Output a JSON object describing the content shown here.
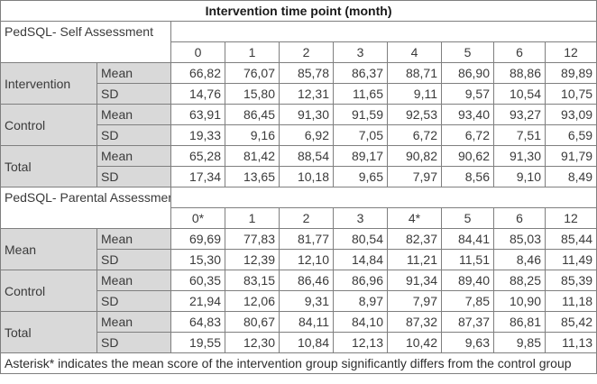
{
  "title": "Intervention time point (month)",
  "self": {
    "label": "PedSQL- Self Assessment",
    "timepoints": [
      "0",
      "1",
      "2",
      "3",
      "4",
      "5",
      "6",
      "12"
    ],
    "groups": [
      {
        "name": "Intervention",
        "rows": [
          {
            "stat": "Mean",
            "values": [
              "66,82",
              "76,07",
              "85,78",
              "86,37",
              "88,71",
              "86,90",
              "88,86",
              "89,89"
            ]
          },
          {
            "stat": "SD",
            "values": [
              "14,76",
              "15,80",
              "12,31",
              "11,65",
              "9,11",
              "9,57",
              "10,54",
              "10,75"
            ]
          }
        ]
      },
      {
        "name": "Control",
        "rows": [
          {
            "stat": "Mean",
            "values": [
              "63,91",
              "86,45",
              "91,30",
              "91,59",
              "92,53",
              "93,40",
              "93,27",
              "93,09"
            ]
          },
          {
            "stat": "SD",
            "values": [
              "19,33",
              "9,16",
              "6,92",
              "7,05",
              "6,72",
              "6,72",
              "7,51",
              "6,59"
            ]
          }
        ]
      },
      {
        "name": "Total",
        "rows": [
          {
            "stat": "Mean",
            "values": [
              "65,28",
              "81,42",
              "88,54",
              "89,17",
              "90,82",
              "90,62",
              "91,30",
              "91,79"
            ]
          },
          {
            "stat": "SD",
            "values": [
              "17,34",
              "13,65",
              "10,18",
              "9,65",
              "7,97",
              "8,56",
              "9,10",
              "8,49"
            ]
          }
        ]
      }
    ]
  },
  "parental": {
    "label": "PedSQL- Parental Assessment",
    "timepoints": [
      "0*",
      "1",
      "2",
      "3",
      "4*",
      "5",
      "6",
      "12"
    ],
    "groups": [
      {
        "name": "Mean",
        "rows": [
          {
            "stat": "Mean",
            "values": [
              "69,69",
              "77,83",
              "81,77",
              "80,54",
              "82,37",
              "84,41",
              "85,03",
              "85,44"
            ]
          },
          {
            "stat": "SD",
            "values": [
              "15,30",
              "12,39",
              "12,10",
              "14,84",
              "11,21",
              "11,51",
              "8,46",
              "11,49"
            ]
          }
        ]
      },
      {
        "name": "Control",
        "rows": [
          {
            "stat": "Mean",
            "values": [
              "60,35",
              "83,15",
              "86,46",
              "86,96",
              "91,34",
              "89,40",
              "88,25",
              "85,39"
            ]
          },
          {
            "stat": "SD",
            "values": [
              "21,94",
              "12,06",
              "9,31",
              "8,97",
              "7,97",
              "7,85",
              "10,90",
              "11,18"
            ]
          }
        ]
      },
      {
        "name": "Total",
        "rows": [
          {
            "stat": "Mean",
            "values": [
              "64,83",
              "80,67",
              "84,11",
              "84,10",
              "87,32",
              "87,37",
              "86,81",
              "85,42"
            ]
          },
          {
            "stat": "SD",
            "values": [
              "19,55",
              "12,30",
              "10,84",
              "12,13",
              "10,42",
              "9,63",
              "9,85",
              "11,13"
            ]
          }
        ]
      }
    ]
  },
  "footnote": "Asterisk* indicates the mean score of the intervention group significantly differs from the control group"
}
